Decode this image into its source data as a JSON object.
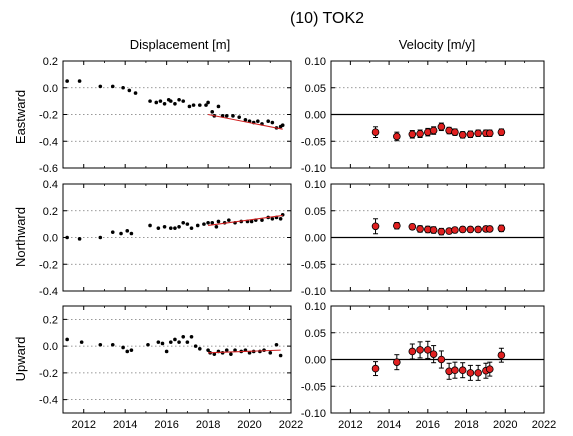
{
  "figure": {
    "title": "(10) TOK2",
    "col_titles": [
      "Displacement [m]",
      "Velocity [m/y]"
    ],
    "row_labels": [
      "Eastward",
      "Northward",
      "Upward"
    ]
  },
  "chart_data": [
    {
      "type": "scatter",
      "panel": "displacement-eastward",
      "xlim": [
        2011,
        2022
      ],
      "xticks": [
        2012,
        2014,
        2016,
        2018,
        2020,
        2022
      ],
      "ylim": [
        -0.6,
        0.2
      ],
      "yticks": [
        "0.2",
        "0.0",
        "-0.2",
        "-0.4",
        "-0.6"
      ],
      "grid": "y-dotted",
      "x": [
        2011.2,
        2011.8,
        2012.8,
        2013.4,
        2013.9,
        2014.2,
        2014.5,
        2015.2,
        2015.5,
        2015.7,
        2015.9,
        2016.1,
        2016.2,
        2016.4,
        2016.6,
        2016.8,
        2017.1,
        2017.3,
        2017.6,
        2017.9,
        2018.0,
        2018.2,
        2018.3,
        2018.5,
        2018.7,
        2018.9,
        2019.2,
        2019.5,
        2019.8,
        2020.0,
        2020.2,
        2020.4,
        2020.6,
        2020.9,
        2021.1,
        2021.3,
        2021.5,
        2021.6
      ],
      "y": [
        0.05,
        0.05,
        0.01,
        0.01,
        0.0,
        -0.02,
        -0.04,
        -0.1,
        -0.11,
        -0.1,
        -0.12,
        -0.09,
        -0.1,
        -0.12,
        -0.09,
        -0.1,
        -0.14,
        -0.13,
        -0.13,
        -0.13,
        -0.11,
        -0.18,
        -0.21,
        -0.14,
        -0.21,
        -0.21,
        -0.21,
        -0.22,
        -0.24,
        -0.25,
        -0.26,
        -0.25,
        -0.27,
        -0.25,
        -0.26,
        -0.3,
        -0.29,
        -0.28
      ],
      "trend": {
        "x": [
          2018.0,
          2021.6
        ],
        "y": [
          -0.2,
          -0.31
        ]
      }
    },
    {
      "type": "scatter",
      "panel": "displacement-northward",
      "xlim": [
        2011,
        2022
      ],
      "xticks": [
        2012,
        2014,
        2016,
        2018,
        2020,
        2022
      ],
      "ylim": [
        -0.4,
        0.4
      ],
      "yticks": [
        "0.4",
        "0.2",
        "0.0",
        "-0.2",
        "-0.4"
      ],
      "grid": "y-dotted",
      "x": [
        2011.2,
        2011.8,
        2012.8,
        2013.4,
        2013.8,
        2014.1,
        2014.3,
        2015.2,
        2015.6,
        2015.9,
        2016.2,
        2016.4,
        2016.6,
        2016.8,
        2017.0,
        2017.2,
        2017.5,
        2017.8,
        2018.0,
        2018.2,
        2018.4,
        2018.5,
        2018.8,
        2019.0,
        2019.3,
        2019.6,
        2019.9,
        2020.1,
        2020.3,
        2020.6,
        2020.9,
        2021.1,
        2021.3,
        2021.5,
        2021.6
      ],
      "y": [
        0.0,
        -0.01,
        0.0,
        0.04,
        0.03,
        0.05,
        0.03,
        0.09,
        0.07,
        0.08,
        0.07,
        0.07,
        0.08,
        0.11,
        0.1,
        0.07,
        0.09,
        0.1,
        0.11,
        0.11,
        0.08,
        0.12,
        0.11,
        0.13,
        0.11,
        0.12,
        0.12,
        0.12,
        0.13,
        0.13,
        0.15,
        0.14,
        0.15,
        0.14,
        0.17
      ],
      "trend": {
        "x": [
          2018.0,
          2021.6
        ],
        "y": [
          0.09,
          0.165
        ]
      }
    },
    {
      "type": "scatter",
      "panel": "displacement-upward",
      "xlim": [
        2011,
        2022
      ],
      "xticks": [
        2012,
        2014,
        2016,
        2018,
        2020,
        2022
      ],
      "ylim": [
        -0.5,
        0.3
      ],
      "yticks": [
        "0.2",
        "0.0",
        "-0.2",
        "-0.4"
      ],
      "grid": "y-dotted",
      "x": [
        2011.2,
        2011.9,
        2012.8,
        2013.4,
        2013.9,
        2014.1,
        2014.3,
        2015.1,
        2015.6,
        2015.8,
        2016.0,
        2016.2,
        2016.4,
        2016.6,
        2016.8,
        2017.0,
        2017.2,
        2017.4,
        2017.6,
        2018.0,
        2018.1,
        2018.3,
        2018.5,
        2018.7,
        2018.9,
        2019.1,
        2019.3,
        2019.6,
        2019.8,
        2020.0,
        2020.2,
        2020.5,
        2020.7,
        2021.0,
        2021.3,
        2021.5
      ],
      "y": [
        0.05,
        0.03,
        0.01,
        0.01,
        -0.01,
        -0.04,
        -0.03,
        0.01,
        0.03,
        0.02,
        -0.04,
        0.03,
        0.05,
        0.03,
        0.07,
        0.03,
        0.07,
        0.0,
        -0.02,
        -0.03,
        -0.05,
        -0.06,
        -0.04,
        -0.05,
        -0.03,
        -0.06,
        -0.03,
        -0.04,
        -0.03,
        -0.05,
        -0.04,
        -0.04,
        -0.03,
        -0.05,
        0.01,
        -0.07
      ],
      "trend": {
        "x": [
          2018.0,
          2021.5
        ],
        "y": [
          -0.05,
          -0.03
        ]
      }
    },
    {
      "type": "errorbar",
      "panel": "velocity-eastward",
      "xlim": [
        2011,
        2022
      ],
      "xticks": [
        2012,
        2014,
        2016,
        2018,
        2020,
        2022
      ],
      "ylim": [
        -0.1,
        0.1
      ],
      "yticks": [
        "0.10",
        "0.05",
        "0.00",
        "-0.05",
        "-0.10"
      ],
      "grid": "y-dotted",
      "x": [
        2013.3,
        2014.4,
        2015.2,
        2015.6,
        2016.0,
        2016.3,
        2016.7,
        2017.1,
        2017.4,
        2017.8,
        2018.2,
        2018.6,
        2019.0,
        2019.2,
        2019.8
      ],
      "y": [
        -0.033,
        -0.041,
        -0.037,
        -0.036,
        -0.033,
        -0.03,
        -0.023,
        -0.03,
        -0.033,
        -0.038,
        -0.037,
        -0.035,
        -0.035,
        -0.035,
        -0.033
      ],
      "err": [
        0.01,
        0.008,
        0.007,
        0.007,
        0.007,
        0.007,
        0.007,
        0.006,
        0.006,
        0.006,
        0.006,
        0.006,
        0.006,
        0.006,
        0.006
      ]
    },
    {
      "type": "errorbar",
      "panel": "velocity-northward",
      "xlim": [
        2011,
        2022
      ],
      "xticks": [
        2012,
        2014,
        2016,
        2018,
        2020,
        2022
      ],
      "ylim": [
        -0.1,
        0.1
      ],
      "yticks": [
        "0.10",
        "0.05",
        "0.00",
        "-0.05",
        "-0.10"
      ],
      "grid": "y-dotted",
      "x": [
        2013.3,
        2014.4,
        2015.2,
        2015.6,
        2016.0,
        2016.3,
        2016.7,
        2017.1,
        2017.4,
        2017.8,
        2018.2,
        2018.6,
        2019.0,
        2019.2,
        2019.8
      ],
      "y": [
        0.021,
        0.022,
        0.02,
        0.016,
        0.015,
        0.014,
        0.011,
        0.012,
        0.014,
        0.015,
        0.015,
        0.015,
        0.016,
        0.016,
        0.017
      ],
      "err": [
        0.014,
        0.006,
        0.005,
        0.006,
        0.006,
        0.006,
        0.006,
        0.005,
        0.005,
        0.005,
        0.005,
        0.005,
        0.005,
        0.005,
        0.006
      ]
    },
    {
      "type": "errorbar",
      "panel": "velocity-upward",
      "xlim": [
        2011,
        2022
      ],
      "xticks": [
        2012,
        2014,
        2016,
        2018,
        2020,
        2022
      ],
      "ylim": [
        -0.1,
        0.1
      ],
      "yticks": [
        "0.10",
        "0.05",
        "0.00",
        "-0.05",
        "-0.10"
      ],
      "grid": "y-dotted",
      "x": [
        2013.3,
        2014.4,
        2015.2,
        2015.6,
        2016.0,
        2016.3,
        2016.7,
        2017.1,
        2017.4,
        2017.8,
        2018.2,
        2018.6,
        2019.0,
        2019.2,
        2019.8
      ],
      "y": [
        -0.017,
        -0.005,
        0.015,
        0.018,
        0.018,
        0.01,
        0.0,
        -0.022,
        -0.02,
        -0.02,
        -0.025,
        -0.025,
        -0.021,
        -0.018,
        0.008
      ],
      "err": [
        0.013,
        0.014,
        0.014,
        0.015,
        0.016,
        0.016,
        0.016,
        0.015,
        0.015,
        0.014,
        0.014,
        0.014,
        0.014,
        0.013,
        0.013
      ]
    }
  ],
  "colors": {
    "dot": "#000000",
    "trend": "#d02020",
    "velocity_marker": "#e02020",
    "grid": "#777777",
    "axis": "#000000"
  }
}
